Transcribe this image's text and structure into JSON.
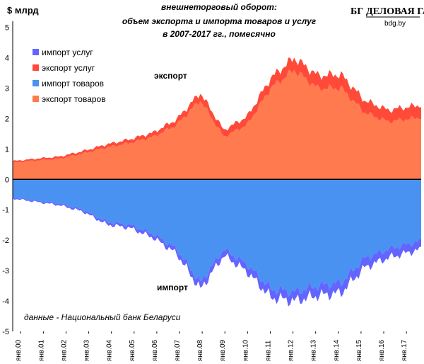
{
  "unit_label": "$ млрд",
  "title_lines": [
    "внешнеторговый оборот:",
    "объем экспорта и импорта товаров и услуг",
    "в 2007-2017 гг., помесячно"
  ],
  "logo": {
    "mark": "БГ",
    "name": "ДЕЛОВАЯ ГАЗЕТА",
    "site": "bdg.by"
  },
  "annotations": {
    "export": "экспорт",
    "import": "импорт"
  },
  "source": "данные - Национальный банк Беларуси",
  "colors": {
    "import_services": "#6464ff",
    "export_services": "#ff4a3a",
    "import_goods": "#4a92f2",
    "export_goods": "#ff7a4e"
  },
  "chart_data": {
    "type": "area",
    "stacked": true,
    "y_range": [
      -5,
      5.2
    ],
    "y_ticks": [
      5,
      4,
      3,
      2,
      1,
      0,
      -1,
      -2,
      -3,
      -4,
      -5
    ],
    "x_ticks": [
      "янв.00",
      "янв.01",
      "янв.02",
      "янв.03",
      "янв.04",
      "янв.05",
      "янв.06",
      "янв.07",
      "янв.08",
      "янв.09",
      "янв.10",
      "янв.11",
      "янв.12",
      "янв.13",
      "янв.14",
      "янв.15",
      "янв.16",
      "янв.17"
    ],
    "legend": {
      "position": "top-left",
      "entries": [
        "импорт услуг",
        "экспорт услуг",
        "импорт товаров",
        "экспорт товаров"
      ]
    },
    "grid": false,
    "annual_averages": {
      "x": [
        "2000",
        "2001",
        "2002",
        "2003",
        "2004",
        "2005",
        "2006",
        "2007",
        "2008",
        "2009",
        "2010",
        "2011",
        "2012",
        "2013",
        "2014",
        "2015",
        "2016",
        "2017"
      ],
      "export_goods": [
        0.55,
        0.62,
        0.68,
        0.85,
        1.05,
        1.2,
        1.4,
        1.8,
        2.6,
        1.4,
        1.8,
        3.0,
        3.6,
        3.0,
        3.0,
        2.2,
        1.9,
        2.0
      ],
      "export_services": [
        0.05,
        0.06,
        0.07,
        0.08,
        0.1,
        0.12,
        0.14,
        0.18,
        0.25,
        0.22,
        0.27,
        0.33,
        0.4,
        0.42,
        0.45,
        0.4,
        0.38,
        0.4
      ],
      "import_goods": [
        -0.6,
        -0.7,
        -0.8,
        -1.0,
        -1.4,
        -1.5,
        -1.8,
        -2.3,
        -3.4,
        -2.3,
        -2.8,
        -3.6,
        -3.7,
        -3.5,
        -3.4,
        -2.6,
        -2.3,
        -2.1
      ],
      "import_services": [
        -0.03,
        -0.04,
        -0.05,
        -0.06,
        -0.08,
        -0.1,
        -0.12,
        -0.15,
        -0.22,
        -0.2,
        -0.24,
        -0.28,
        -0.3,
        -0.32,
        -0.33,
        -0.3,
        -0.28,
        -0.28
      ]
    }
  }
}
